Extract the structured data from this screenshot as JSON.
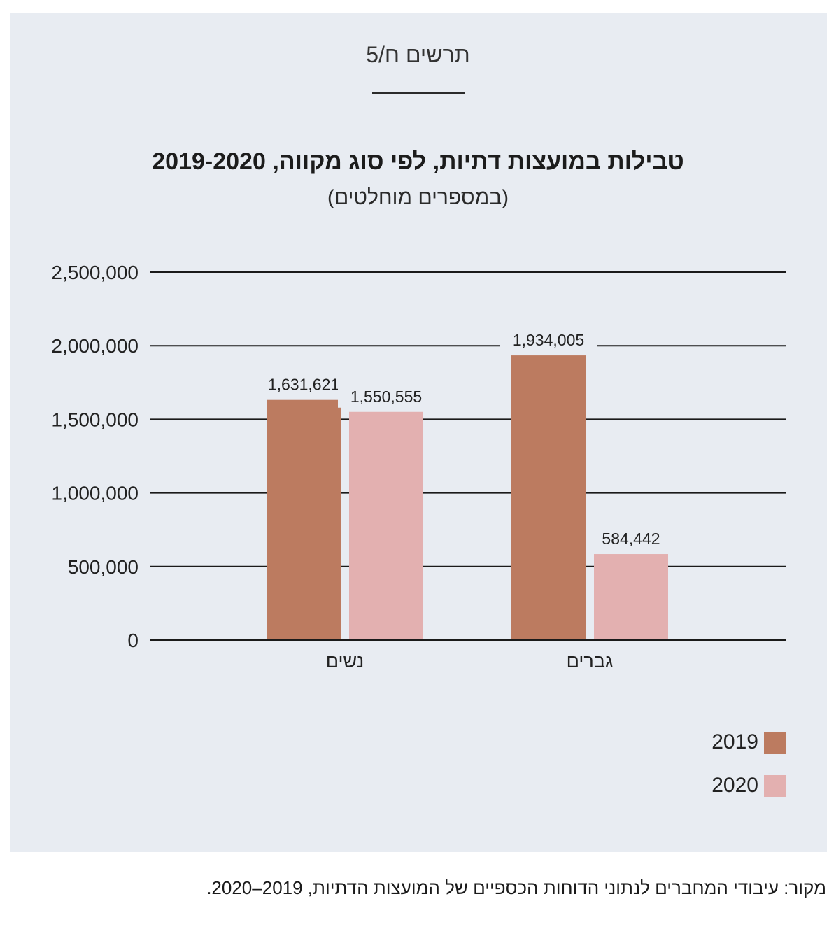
{
  "figure_label": "תרשים ח/5",
  "source": "מקור: עיבודי המחברים לנתוני הדוחות הכספיים של המועצות הדתיות, 2019–2020.",
  "chart_data": {
    "type": "bar",
    "title": "טבילות במועצות דתיות, לפי סוג מקווה, 2019-2020",
    "subtitle": "(במספרים מוחלטים)",
    "categories": [
      "נשים",
      "גברים"
    ],
    "series": [
      {
        "name": "2019",
        "values": [
          1631621,
          1934005
        ],
        "labels": [
          "1,631,621",
          "1,934,005"
        ],
        "color": "#bc7b60"
      },
      {
        "name": "2020",
        "values": [
          1550555,
          584442
        ],
        "labels": [
          "1,550,555",
          "584,442"
        ],
        "color": "#e3b0b0"
      }
    ],
    "ylim": [
      0,
      2500000
    ],
    "yticks": [
      {
        "value": 0,
        "label": "0"
      },
      {
        "value": 500000,
        "label": "500,000"
      },
      {
        "value": 1000000,
        "label": "1,000,000"
      },
      {
        "value": 1500000,
        "label": "1,500,000"
      },
      {
        "value": 2000000,
        "label": "2,000,000"
      },
      {
        "value": 2500000,
        "label": "2,500,000"
      }
    ],
    "grid": true,
    "legend_position": "bottom-right"
  }
}
